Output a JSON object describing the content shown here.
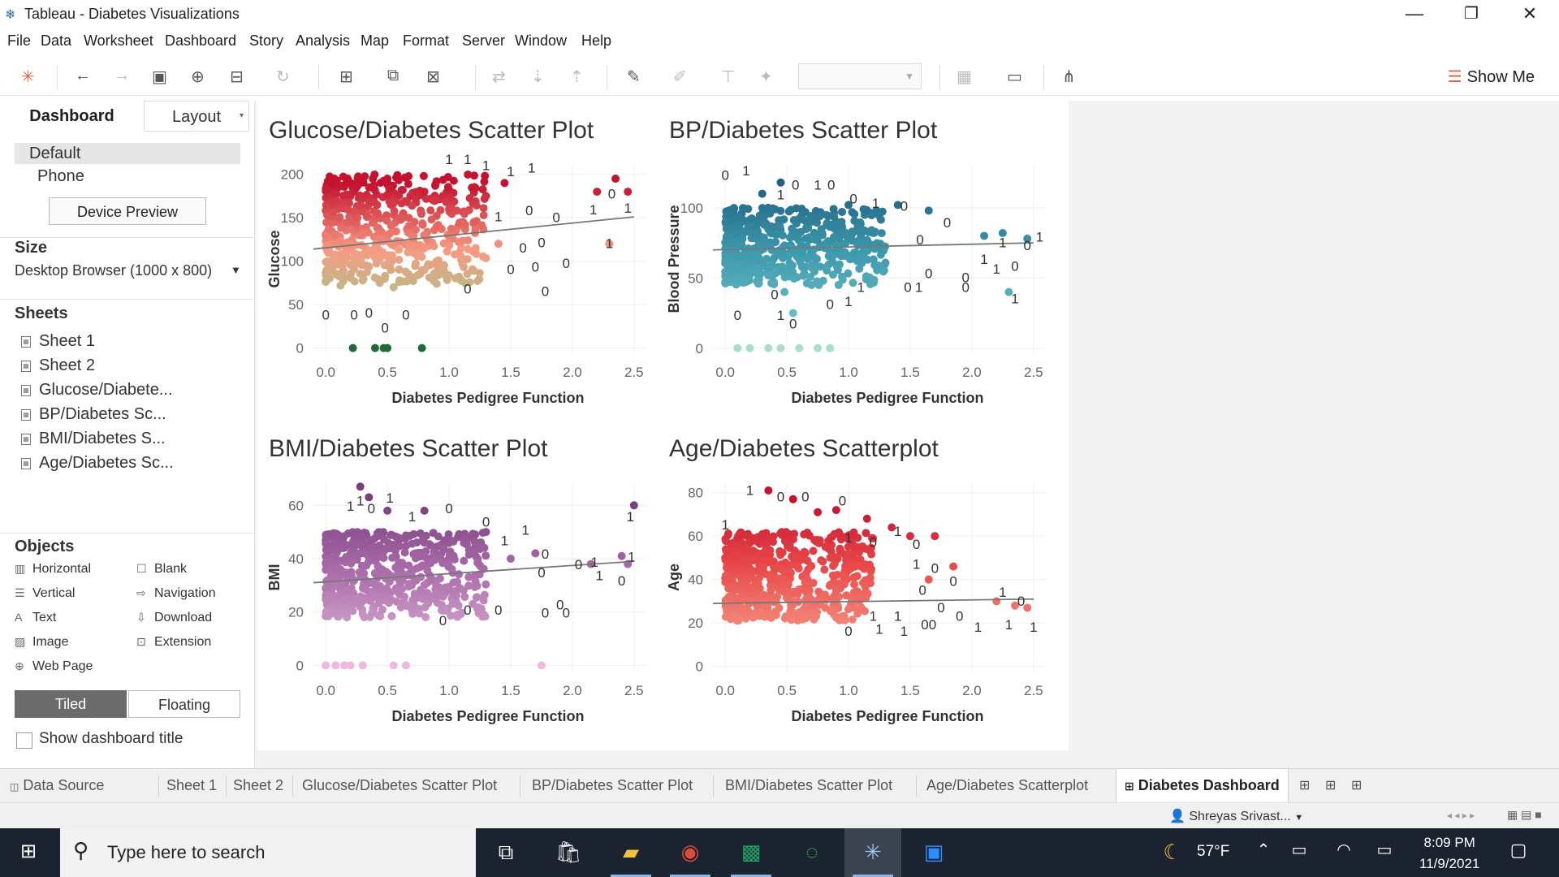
{
  "window": {
    "title": "Tableau - Diabetes Visualizations",
    "controls": [
      "—",
      "❐",
      "✕"
    ]
  },
  "menu": [
    "File",
    "Data",
    "Worksheet",
    "Dashboard",
    "Story",
    "Analysis",
    "Map",
    "Format",
    "Server",
    "Window",
    "Help"
  ],
  "toolbar": {
    "show_me": "Show Me"
  },
  "left_panel": {
    "tabs": {
      "dashboard": "Dashboard",
      "layout": "Layout"
    },
    "device": {
      "default": "Default",
      "phone": "Phone",
      "preview_button": "Device Preview"
    },
    "size": {
      "heading": "Size",
      "value": "Desktop Browser (1000 x 800)"
    },
    "sheets": {
      "heading": "Sheets",
      "items": [
        "Sheet 1",
        "Sheet 2",
        "Glucose/Diabete...",
        "BP/Diabetes Sc...",
        "BMI/Diabetes S...",
        "Age/Diabetes Sc..."
      ]
    },
    "objects": {
      "heading": "Objects",
      "items": [
        "Horizontal",
        "Blank",
        "Vertical",
        "Navigation",
        "Text",
        "Download",
        "Image",
        "Extension",
        "Web Page"
      ]
    },
    "tiled": "Tiled",
    "floating": "Floating",
    "show_title": "Show dashboard title"
  },
  "chart_data": [
    {
      "type": "scatter",
      "title": "Glucose/Diabetes Scatter Plot",
      "xlabel": "Diabetes Pedigree Function",
      "ylabel": "Glucose",
      "xticks": [
        "0.0",
        "0.5",
        "1.0",
        "1.5",
        "2.0",
        "2.5"
      ],
      "yticks": [
        "0",
        "50",
        "100",
        "150",
        "200"
      ],
      "xlim": [
        -0.1,
        2.6
      ],
      "ylim": [
        -5,
        210
      ],
      "trend": [
        [
          -0.1,
          114
        ],
        [
          2.5,
          151
        ]
      ],
      "colors": {
        "high": "#c4122f",
        "mid": "#f79b82",
        "low": "#8ed08a",
        "zero": "#1e6b35"
      },
      "points": [
        [
          0.22,
          0
        ],
        [
          0.4,
          0
        ],
        [
          0.47,
          0
        ],
        [
          0.5,
          0
        ],
        [
          0.78,
          0
        ],
        [
          0.12,
          72
        ],
        [
          0.3,
          78
        ],
        [
          0.55,
          70
        ],
        [
          0.9,
          74
        ],
        [
          1.1,
          78
        ],
        [
          1.2,
          89
        ],
        [
          0.2,
          96
        ],
        [
          0.4,
          105
        ],
        [
          0.8,
          90
        ],
        [
          0.3,
          130
        ],
        [
          0.6,
          150
        ],
        [
          0.9,
          140
        ],
        [
          1.0,
          160
        ],
        [
          1.2,
          145
        ],
        [
          1.4,
          120
        ],
        [
          0.25,
          185
        ],
        [
          0.5,
          195
        ],
        [
          0.8,
          180
        ],
        [
          1.45,
          190
        ],
        [
          2.35,
          195
        ],
        [
          2.45,
          180
        ],
        [
          2.3,
          120
        ],
        [
          2.2,
          180
        ]
      ],
      "labels": [
        [
          1.0,
          212,
          "1"
        ],
        [
          1.15,
          212,
          "1"
        ],
        [
          1.3,
          205,
          "1"
        ],
        [
          1.5,
          198,
          "1"
        ],
        [
          1.67,
          202,
          "1"
        ],
        [
          1.4,
          146,
          "1"
        ],
        [
          1.65,
          153,
          "0"
        ],
        [
          1.87,
          145,
          "0"
        ],
        [
          2.17,
          154,
          "1"
        ],
        [
          2.32,
          172,
          "0"
        ],
        [
          2.45,
          156,
          "1"
        ],
        [
          2.3,
          115,
          "1"
        ],
        [
          1.75,
          116,
          "0"
        ],
        [
          1.6,
          110,
          "0"
        ],
        [
          1.5,
          85,
          "0"
        ],
        [
          1.7,
          88,
          "0"
        ],
        [
          1.15,
          63,
          "0"
        ],
        [
          1.78,
          60,
          "0"
        ],
        [
          1.95,
          92,
          "0"
        ],
        [
          0.0,
          33,
          "0"
        ],
        [
          0.23,
          33,
          "0"
        ],
        [
          0.35,
          35,
          "0"
        ],
        [
          0.48,
          18,
          "0"
        ],
        [
          0.65,
          33,
          "0"
        ]
      ]
    },
    {
      "type": "scatter",
      "title": "BP/Diabetes Scatter Plot",
      "xlabel": "Diabetes Pedigree Function",
      "ylabel": "Blood Pressure",
      "xticks": [
        "0.0",
        "0.5",
        "1.0",
        "1.5",
        "2.0",
        "2.5"
      ],
      "yticks": [
        "0",
        "50",
        "100"
      ],
      "xlim": [
        -0.1,
        2.6
      ],
      "ylim": [
        -3,
        130
      ],
      "trend": [
        [
          -0.1,
          70
        ],
        [
          2.5,
          75
        ]
      ],
      "colors": {
        "high": "#1f5f80",
        "mid": "#3c98ac",
        "low": "#6fc1c9",
        "zero": "#a8ddd0"
      },
      "points": [
        [
          0.1,
          0
        ],
        [
          0.2,
          0
        ],
        [
          0.35,
          0
        ],
        [
          0.45,
          0
        ],
        [
          0.6,
          0
        ],
        [
          0.75,
          0
        ],
        [
          0.85,
          0
        ],
        [
          0.3,
          110
        ],
        [
          0.45,
          118
        ],
        [
          1.0,
          102
        ],
        [
          1.4,
          102
        ],
        [
          1.65,
          98
        ],
        [
          2.1,
          80
        ],
        [
          2.25,
          82
        ],
        [
          2.45,
          78
        ],
        [
          2.3,
          40
        ],
        [
          0.55,
          25
        ],
        [
          0.48,
          40
        ],
        [
          0.7,
          45
        ]
      ],
      "labels": [
        [
          0.0,
          120,
          "0"
        ],
        [
          0.17,
          123,
          "1"
        ],
        [
          0.45,
          106,
          "1"
        ],
        [
          0.57,
          113,
          "0"
        ],
        [
          0.75,
          113,
          "1"
        ],
        [
          0.86,
          113,
          "0"
        ],
        [
          1.04,
          103,
          "0"
        ],
        [
          1.22,
          100,
          "1"
        ],
        [
          1.45,
          98,
          "0"
        ],
        [
          1.58,
          74,
          "0"
        ],
        [
          1.8,
          86,
          "0"
        ],
        [
          1.65,
          50,
          "0"
        ],
        [
          1.57,
          40,
          "1"
        ],
        [
          1.48,
          40,
          "0"
        ],
        [
          1.1,
          40,
          "1"
        ],
        [
          1.95,
          47,
          "0"
        ],
        [
          2.1,
          60,
          "1"
        ],
        [
          2.2,
          53,
          "1"
        ],
        [
          2.25,
          72,
          "1"
        ],
        [
          2.45,
          70,
          "0"
        ],
        [
          2.55,
          76,
          "1"
        ],
        [
          2.35,
          55,
          "0"
        ],
        [
          2.35,
          32,
          "1"
        ],
        [
          0.1,
          20,
          "0"
        ],
        [
          0.4,
          35,
          "0"
        ],
        [
          0.45,
          20,
          "1"
        ],
        [
          0.55,
          14,
          "0"
        ],
        [
          0.85,
          28,
          "0"
        ],
        [
          1.0,
          30,
          "1"
        ],
        [
          1.95,
          40,
          "0"
        ]
      ]
    },
    {
      "type": "scatter",
      "title": "BMI/Diabetes Scatter Plot",
      "xlabel": "Diabetes Pedigree Function",
      "ylabel": "BMI",
      "xticks": [
        "0.0",
        "0.5",
        "1.0",
        "1.5",
        "2.0",
        "2.5"
      ],
      "yticks": [
        "0",
        "20",
        "40",
        "60"
      ],
      "xlim": [
        -0.1,
        2.6
      ],
      "ylim": [
        -2,
        68
      ],
      "trend": [
        [
          -0.1,
          31
        ],
        [
          2.5,
          39
        ]
      ],
      "colors": {
        "high": "#7b3f80",
        "mid": "#a86aa8",
        "low": "#d6a9cf",
        "zero": "#efb8e0"
      },
      "points": [
        [
          0.0,
          0
        ],
        [
          0.08,
          0
        ],
        [
          0.15,
          0
        ],
        [
          0.2,
          0
        ],
        [
          0.3,
          0
        ],
        [
          0.55,
          0
        ],
        [
          0.65,
          0
        ],
        [
          1.75,
          0
        ],
        [
          0.28,
          67
        ],
        [
          0.35,
          63
        ],
        [
          0.5,
          58
        ],
        [
          0.8,
          58
        ],
        [
          1.3,
          50
        ],
        [
          1.5,
          40
        ],
        [
          1.7,
          42
        ],
        [
          2.15,
          38
        ],
        [
          2.4,
          41
        ],
        [
          2.5,
          60
        ],
        [
          2.45,
          38
        ]
      ],
      "labels": [
        [
          0.2,
          58,
          "1"
        ],
        [
          0.28,
          60,
          "1"
        ],
        [
          0.37,
          57,
          "0"
        ],
        [
          0.52,
          61,
          "1"
        ],
        [
          0.7,
          54,
          "1"
        ],
        [
          1.0,
          57,
          "0"
        ],
        [
          1.3,
          52,
          "0"
        ],
        [
          1.45,
          45,
          "1"
        ],
        [
          1.62,
          49,
          "1"
        ],
        [
          1.78,
          40,
          "0"
        ],
        [
          1.75,
          33,
          "0"
        ],
        [
          2.05,
          36,
          "0"
        ],
        [
          2.18,
          37,
          "1"
        ],
        [
          2.47,
          54,
          "1"
        ],
        [
          2.48,
          39,
          "1"
        ],
        [
          2.4,
          30,
          "0"
        ],
        [
          2.22,
          32,
          "1"
        ],
        [
          1.9,
          21,
          "0"
        ],
        [
          1.95,
          18,
          "0"
        ],
        [
          1.78,
          18,
          "0"
        ],
        [
          1.15,
          19,
          "0"
        ],
        [
          1.4,
          19,
          "0"
        ],
        [
          0.95,
          15,
          "0"
        ]
      ]
    },
    {
      "type": "scatter",
      "title": "Age/Diabetes Scatterplot",
      "xlabel": "Diabetes Pedigree Function",
      "ylabel": "Age",
      "xticks": [
        "0.0",
        "0.5",
        "1.0",
        "1.5",
        "2.0",
        "2.5"
      ],
      "yticks": [
        "0",
        "20",
        "40",
        "60",
        "80"
      ],
      "xlim": [
        -0.1,
        2.6
      ],
      "ylim": [
        -2,
        84
      ],
      "trend": [
        [
          -0.1,
          29
        ],
        [
          2.5,
          31
        ]
      ],
      "colors": {
        "high": "#c4122f",
        "mid": "#ea4b4b",
        "low": "#f59a86",
        "zero": "#f8b9a7"
      },
      "points": [
        [
          0.35,
          81
        ],
        [
          0.55,
          77
        ],
        [
          0.75,
          71
        ],
        [
          0.9,
          72
        ],
        [
          1.15,
          68
        ],
        [
          1.35,
          64
        ],
        [
          1.5,
          60
        ],
        [
          1.7,
          60
        ],
        [
          1.65,
          40
        ],
        [
          1.85,
          46
        ],
        [
          2.2,
          30
        ],
        [
          2.35,
          28
        ],
        [
          2.45,
          27
        ]
      ],
      "labels": [
        [
          0.0,
          63,
          "1"
        ],
        [
          0.2,
          79,
          "1"
        ],
        [
          0.45,
          76,
          "0"
        ],
        [
          0.65,
          76,
          "0"
        ],
        [
          0.95,
          74,
          "0"
        ],
        [
          1.0,
          57,
          "1"
        ],
        [
          1.2,
          55,
          "0"
        ],
        [
          1.4,
          60,
          "1"
        ],
        [
          1.55,
          54,
          "0"
        ],
        [
          1.55,
          45,
          "1"
        ],
        [
          1.7,
          43,
          "0"
        ],
        [
          1.85,
          37,
          "0"
        ],
        [
          1.6,
          33,
          "0"
        ],
        [
          1.75,
          25,
          "0"
        ],
        [
          1.9,
          21,
          "0"
        ],
        [
          2.05,
          16,
          "1"
        ],
        [
          2.3,
          17,
          "1"
        ],
        [
          2.25,
          32,
          "1"
        ],
        [
          2.4,
          28,
          "0"
        ],
        [
          2.5,
          16,
          "1"
        ],
        [
          1.4,
          21,
          "1"
        ],
        [
          1.2,
          21,
          "1"
        ],
        [
          1.0,
          14,
          "0"
        ],
        [
          1.25,
          15,
          "1"
        ],
        [
          1.45,
          14,
          "1"
        ],
        [
          1.65,
          17,
          "00"
        ]
      ]
    }
  ],
  "sheet_tabs": {
    "data_source": "Data Source",
    "tabs": [
      "Sheet 1",
      "Sheet 2",
      "Glucose/Diabetes Scatter Plot",
      "BP/Diabetes Scatter Plot",
      "BMI/Diabetes Scatter Plot",
      "Age/Diabetes Scatterplot",
      "Diabetes Dashboard"
    ]
  },
  "status": {
    "user": "Shreyas Srivast..."
  },
  "taskbar": {
    "search_placeholder": "Type here to search",
    "weather": "57°F",
    "time": "8:09 PM",
    "date": "11/9/2021"
  }
}
